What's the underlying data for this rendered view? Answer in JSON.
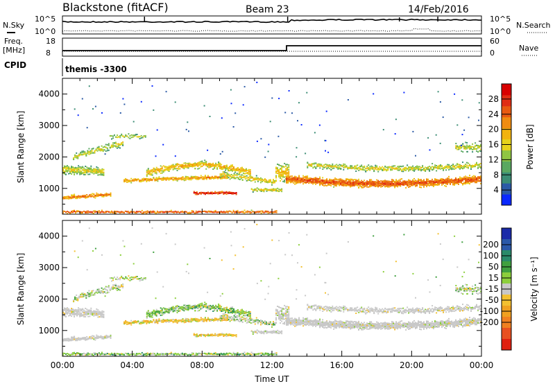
{
  "header": {
    "station": "Blackstone (fitACF)",
    "beam": "Beam 23",
    "date": "14/Feb/2016"
  },
  "summary_panel": {
    "nsky_label": "N.Sky",
    "nsky_ticks": [
      "10^5",
      "10^0"
    ],
    "nsearch_label": "N.Search",
    "freq_label": "Freq.",
    "freq_unit": "[MHz]",
    "freq_ticks": [
      "18",
      "8"
    ],
    "nave_label": "Nave",
    "nave_ticks": [
      "60",
      "0"
    ],
    "cpid_label": "CPID",
    "cpid_value": "themis -3300"
  },
  "chart_data": [
    {
      "type": "heatmap",
      "name": "power",
      "ylabel": "Slant Range [km]",
      "xlabel": "",
      "x_ticks": [
        "00:00",
        "04:00",
        "08:00",
        "12:00",
        "16:00",
        "20:00",
        "00:00"
      ],
      "xlim_hours": [
        0,
        24
      ],
      "y_ticks": [
        1000,
        2000,
        3000,
        4000
      ],
      "ylim_km": [
        180,
        4500
      ],
      "colorbar": {
        "label": "Power [dB]",
        "ticks": [
          4,
          8,
          12,
          16,
          20,
          24,
          28
        ],
        "range": [
          0,
          32
        ],
        "colors": [
          "#0a28ff",
          "#2b5aa6",
          "#3b8d74",
          "#5aa860",
          "#8fc542",
          "#e6d21a",
          "#f2b310",
          "#f08c10",
          "#e85a10",
          "#e02d14",
          "#d80000"
        ]
      }
    },
    {
      "type": "heatmap",
      "name": "velocity",
      "ylabel": "Slant Range [km]",
      "xlabel": "Time UT",
      "x_ticks": [
        "00:00",
        "04:00",
        "08:00",
        "12:00",
        "16:00",
        "20:00",
        "00:00"
      ],
      "xlim_hours": [
        0,
        24
      ],
      "y_ticks": [
        1000,
        2000,
        3000,
        4000
      ],
      "ylim_km": [
        180,
        4500
      ],
      "colorbar": {
        "label": "Velocity [m s⁻¹]",
        "ticks": [
          200,
          100,
          50,
          15,
          -15,
          -50,
          -100,
          -200
        ],
        "colors": [
          "#1a2aa8",
          "#2a58a8",
          "#2a8a6a",
          "#40a040",
          "#8ccf3c",
          "#c8c8c8",
          "#f3c030",
          "#f0a020",
          "#f08020",
          "#e85020",
          "#e02010"
        ]
      }
    }
  ]
}
